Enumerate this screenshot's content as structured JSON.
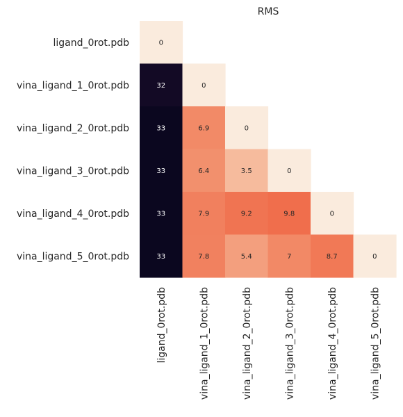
{
  "chart_data": {
    "type": "heatmap",
    "title": "RMS",
    "xlabel": "",
    "ylabel": "",
    "row_labels": [
      "ligand_0rot.pdb",
      "vina_ligand_1_0rot.pdb",
      "vina_ligand_2_0rot.pdb",
      "vina_ligand_3_0rot.pdb",
      "vina_ligand_4_0rot.pdb",
      "vina_ligand_5_0rot.pdb"
    ],
    "col_labels": [
      "ligand_0rot.pdb",
      "vina_ligand_1_0rot.pdb",
      "vina_ligand_2_0rot.pdb",
      "vina_ligand_3_0rot.pdb",
      "vina_ligand_4_0rot.pdb",
      "vina_ligand_5_0rot.pdb"
    ],
    "mask": "upper triangle (lower triangle incl. diagonal shown)",
    "values": [
      [
        0,
        null,
        null,
        null,
        null,
        null
      ],
      [
        32,
        0,
        null,
        null,
        null,
        null
      ],
      [
        33,
        6.9,
        0,
        null,
        null,
        null
      ],
      [
        33,
        6.4,
        3.5,
        0,
        null,
        null
      ],
      [
        33,
        7.9,
        9.2,
        9.8,
        0,
        null
      ],
      [
        33,
        7.8,
        5.4,
        7,
        8.7,
        0
      ]
    ],
    "value_labels": [
      [
        "0",
        null,
        null,
        null,
        null,
        null
      ],
      [
        "32",
        "0",
        null,
        null,
        null,
        null
      ],
      [
        "33",
        "6.9",
        "0",
        null,
        null,
        null
      ],
      [
        "33",
        "6.4",
        "3.5",
        "0",
        null,
        null
      ],
      [
        "33",
        "7.9",
        "9.2",
        "9.8",
        "0",
        null
      ],
      [
        "33",
        "7.8",
        "5.4",
        "7",
        "8.7",
        "0"
      ]
    ],
    "colormap": "rocket_r",
    "colorbar": false,
    "grid": false
  }
}
